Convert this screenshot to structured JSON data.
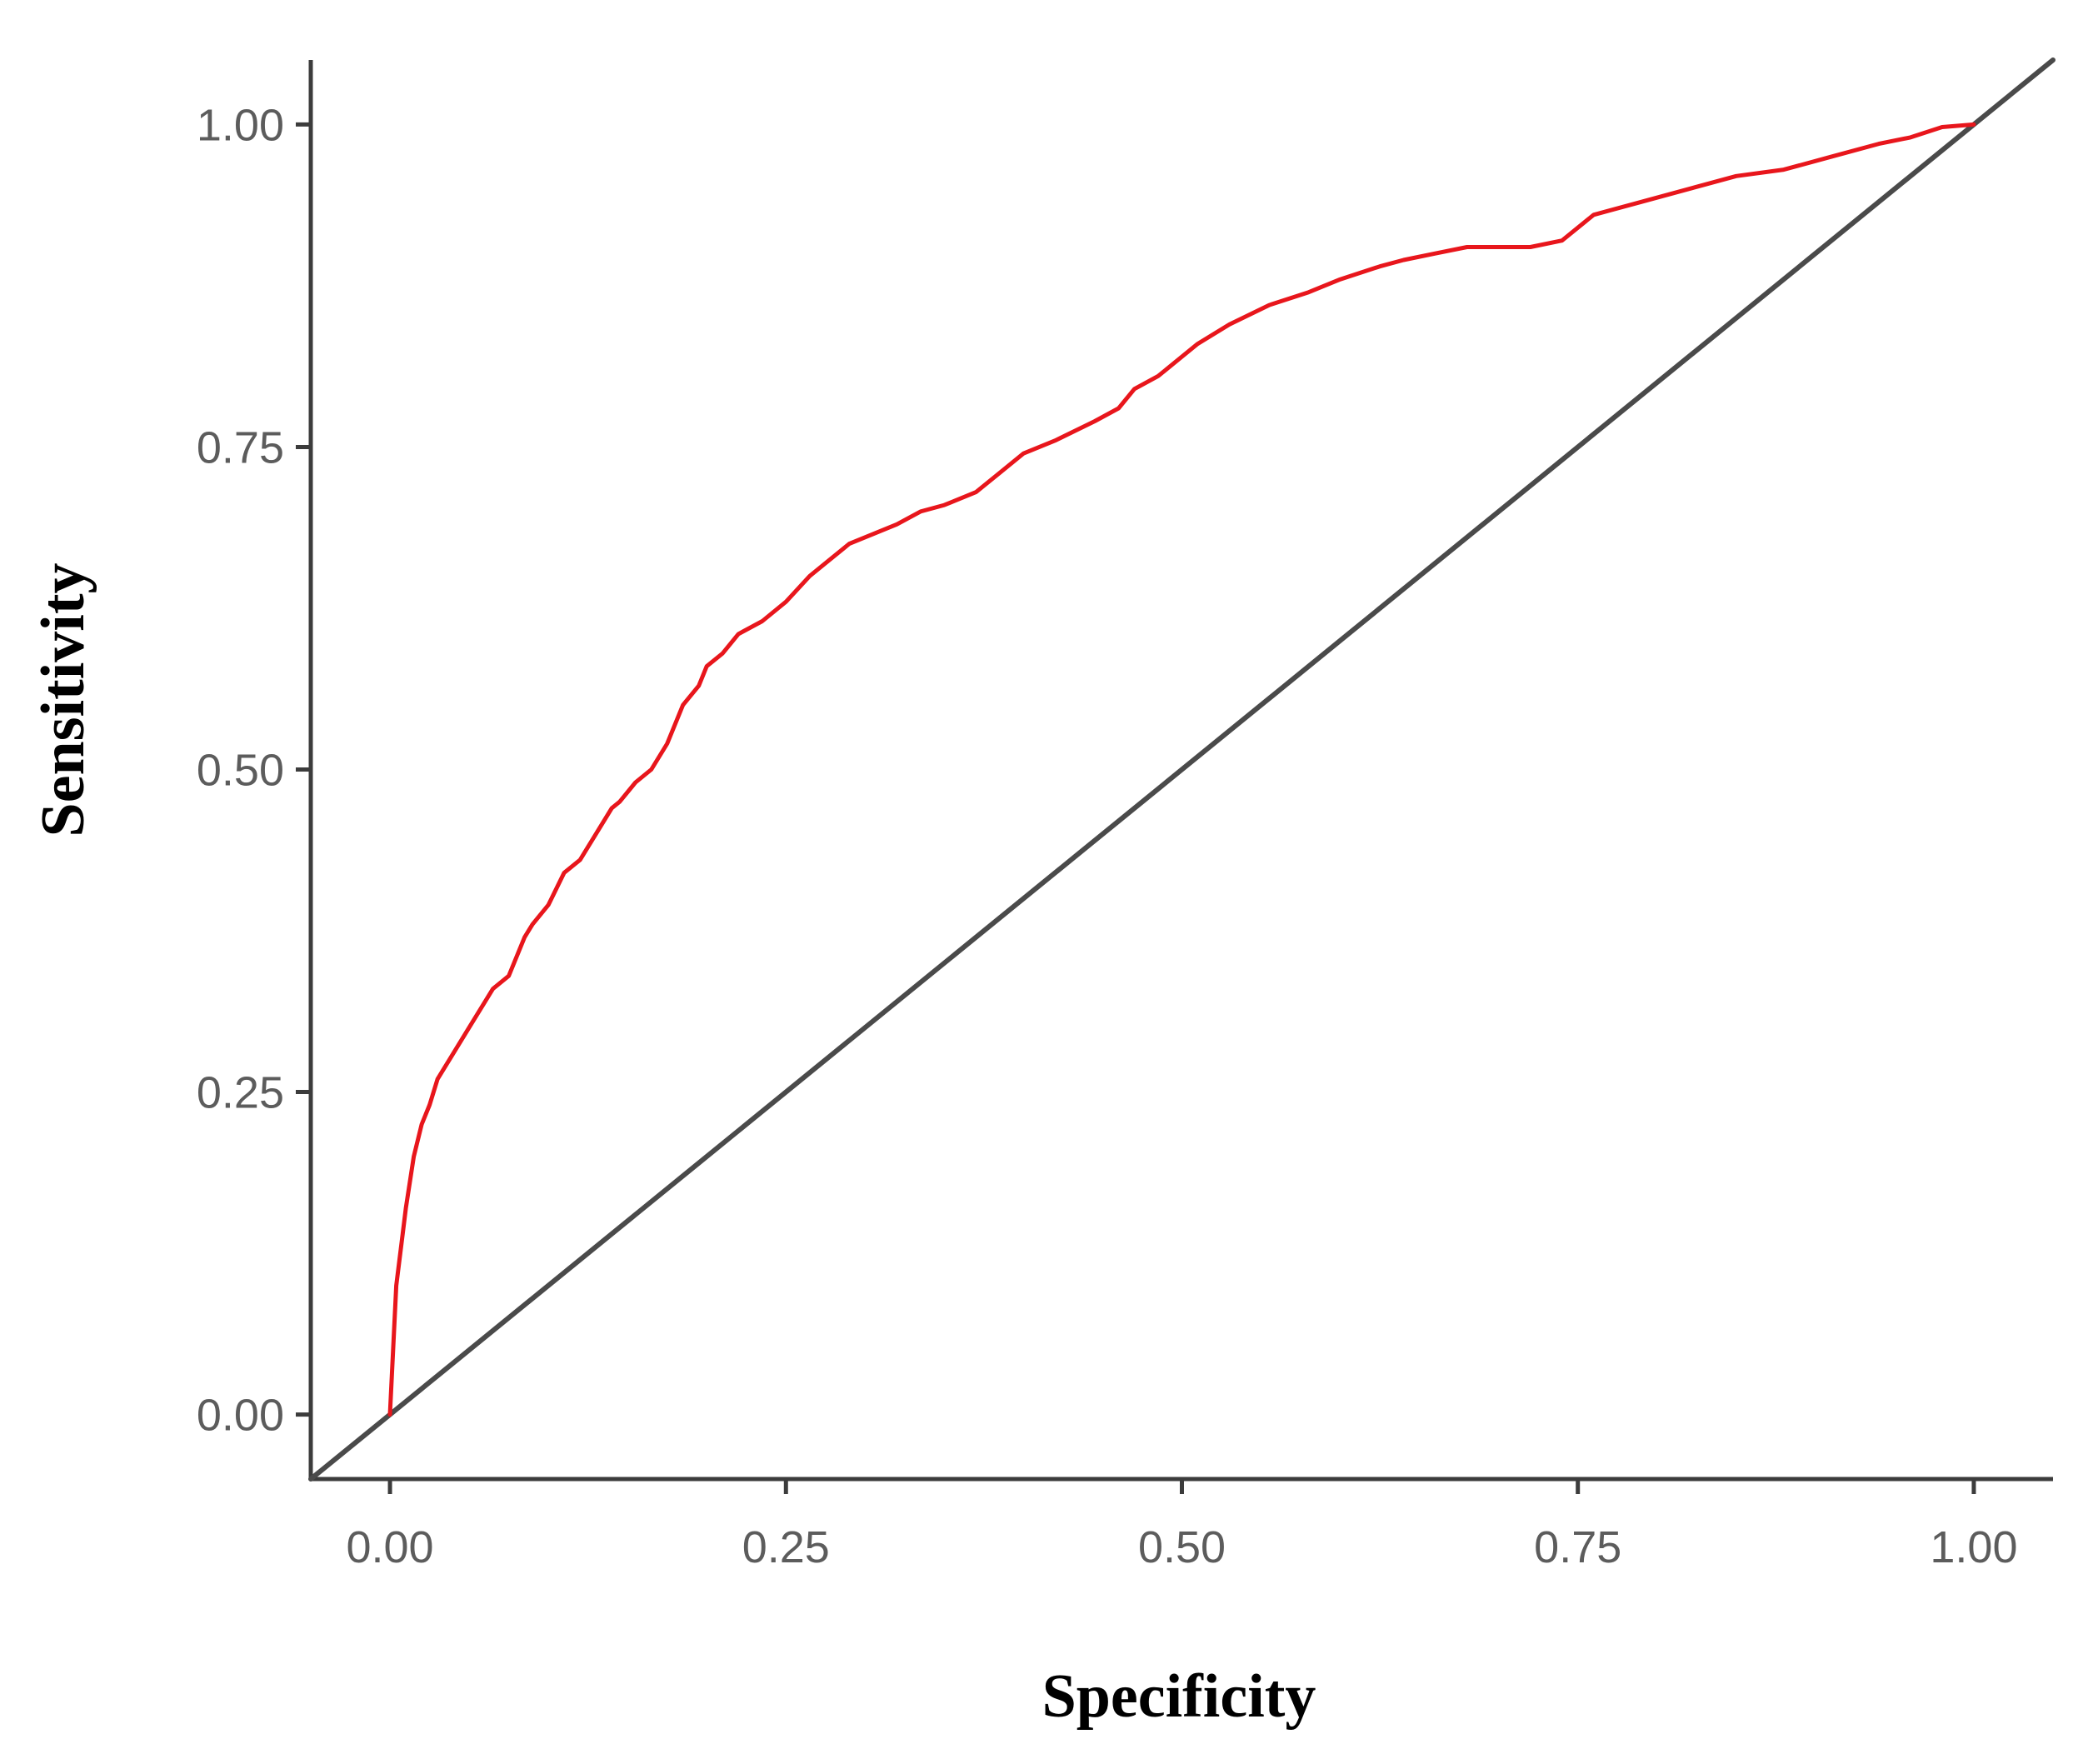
{
  "chart_data": {
    "type": "line",
    "title": "",
    "xlabel": "Specificity",
    "ylabel": "Sensitivity",
    "xlim": [
      -0.05,
      1.05
    ],
    "ylim": [
      -0.05,
      1.05
    ],
    "x_ticks": [
      0.0,
      0.25,
      0.5,
      0.75,
      1.0
    ],
    "x_tick_labels": [
      "0.00",
      "0.25",
      "0.50",
      "0.75",
      "1.00"
    ],
    "y_ticks": [
      0.0,
      0.25,
      0.5,
      0.75,
      1.0
    ],
    "y_tick_labels": [
      "0.00",
      "0.25",
      "0.50",
      "0.75",
      "1.00"
    ],
    "grid": false,
    "legend": "none",
    "series": [
      {
        "color": "#e8161c",
        "x": [
          0.0,
          0.002,
          0.004,
          0.008,
          0.01,
          0.015,
          0.02,
          0.025,
          0.03,
          0.035,
          0.04,
          0.05,
          0.06,
          0.065,
          0.075,
          0.085,
          0.09,
          0.1,
          0.11,
          0.12,
          0.13,
          0.14,
          0.145,
          0.155,
          0.165,
          0.175,
          0.185,
          0.195,
          0.2,
          0.21,
          0.22,
          0.235,
          0.25,
          0.265,
          0.275,
          0.29,
          0.3,
          0.32,
          0.335,
          0.35,
          0.37,
          0.385,
          0.4,
          0.42,
          0.445,
          0.46,
          0.47,
          0.485,
          0.5,
          0.51,
          0.53,
          0.555,
          0.58,
          0.6,
          0.625,
          0.64,
          0.66,
          0.68,
          0.7,
          0.72,
          0.74,
          0.76,
          0.79,
          0.82,
          0.85,
          0.88,
          0.91,
          0.94,
          0.96,
          0.98,
          1.0
        ],
        "y": [
          0.0,
          0.05,
          0.1,
          0.14,
          0.16,
          0.2,
          0.225,
          0.24,
          0.26,
          0.27,
          0.28,
          0.3,
          0.32,
          0.33,
          0.34,
          0.37,
          0.38,
          0.395,
          0.42,
          0.43,
          0.45,
          0.47,
          0.475,
          0.49,
          0.5,
          0.52,
          0.55,
          0.565,
          0.58,
          0.59,
          0.605,
          0.615,
          0.63,
          0.65,
          0.66,
          0.675,
          0.68,
          0.69,
          0.7,
          0.705,
          0.715,
          0.73,
          0.745,
          0.755,
          0.77,
          0.78,
          0.795,
          0.805,
          0.82,
          0.83,
          0.845,
          0.86,
          0.87,
          0.88,
          0.89,
          0.895,
          0.9,
          0.905,
          0.905,
          0.905,
          0.91,
          0.93,
          0.94,
          0.95,
          0.96,
          0.965,
          0.975,
          0.985,
          0.99,
          0.998,
          1.0
        ]
      },
      {
        "color": "#4a4a4a",
        "x": [
          -0.05,
          1.05
        ],
        "y": [
          -0.05,
          1.05
        ]
      }
    ]
  }
}
